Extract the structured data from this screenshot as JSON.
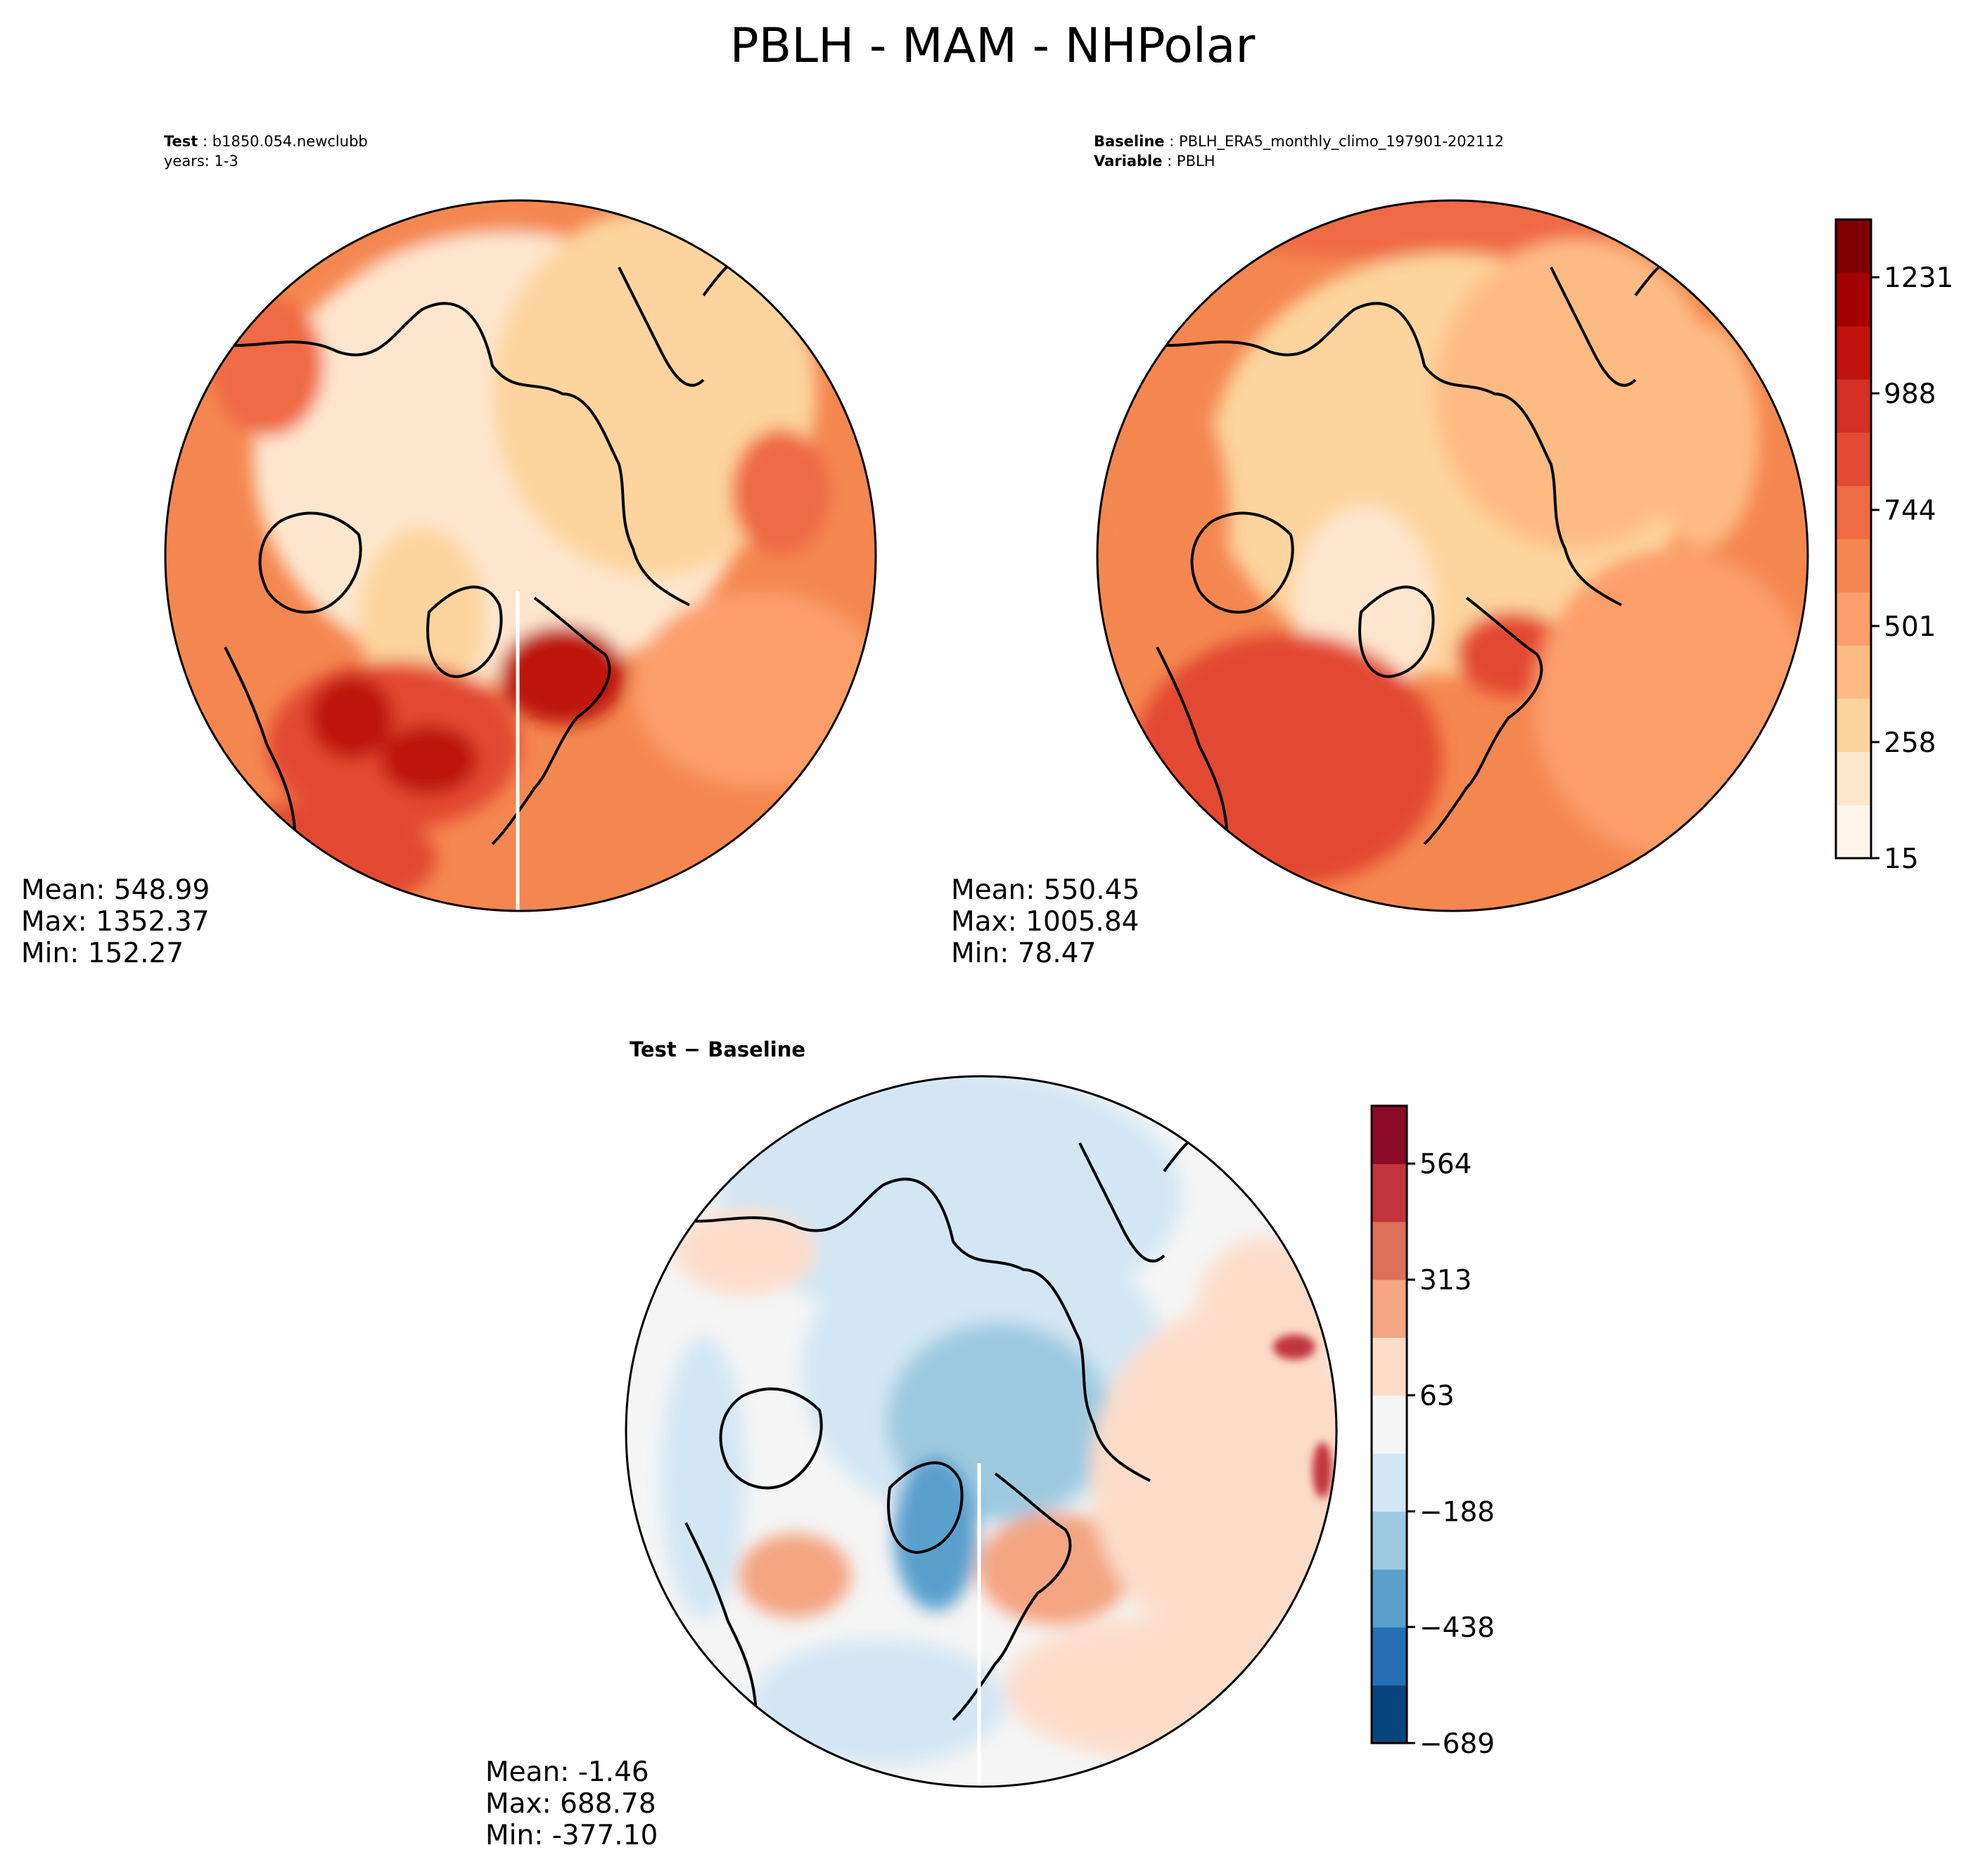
{
  "figure": {
    "title": "PBLH - MAM - NHPolar"
  },
  "panels": [
    {
      "id": "test",
      "line1_label": "Test",
      "line1_value": "b1850.054.newclubb",
      "line2_label": "",
      "line2_value": "years: 1-3",
      "stats": [
        "Mean: 548.99",
        "Max: 1352.37",
        "Min: 152.27"
      ]
    },
    {
      "id": "baseline",
      "line1_label": "Baseline",
      "line1_value": "PBLH_ERA5_monthly_climo_197901-202112",
      "line2_label": "Variable",
      "line2_value": "PBLH",
      "stats": [
        "Mean: 550.45",
        "Max: 1005.84",
        "Min: 78.47"
      ]
    },
    {
      "id": "diff",
      "title": "Test − Baseline",
      "stats": [
        "Mean: -1.46",
        "Max: 688.78",
        "Min: -377.10"
      ]
    }
  ],
  "colorbars": [
    {
      "id": "abs",
      "colors": [
        "#fff5eb",
        "#fee6ce",
        "#fdd49e",
        "#fdbb84",
        "#fc9e6b",
        "#f4874f",
        "#ef6b44",
        "#e34a33",
        "#d42f22",
        "#be120a",
        "#a50000",
        "#7f0000"
      ],
      "tick_labels": [
        "15",
        "258",
        "501",
        "744",
        "988",
        "1231"
      ],
      "tick_values": [
        15,
        258,
        501,
        744,
        988,
        1231
      ],
      "vmin": 15,
      "vmax": 1352
    },
    {
      "id": "diff",
      "colors": [
        "#08457e",
        "#2570b4",
        "#5aa0cd",
        "#9ecae1",
        "#d3e6f3",
        "#f5f5f5",
        "#fcdcc9",
        "#f4a582",
        "#dd7058",
        "#c2353c",
        "#8b0a27"
      ],
      "tick_labels": [
        "−689",
        "−438",
        "−188",
        "63",
        "313",
        "564"
      ],
      "tick_values": [
        -689,
        -438,
        -188,
        63,
        313,
        564
      ],
      "vmin": -689,
      "vmax": 689
    }
  ]
}
